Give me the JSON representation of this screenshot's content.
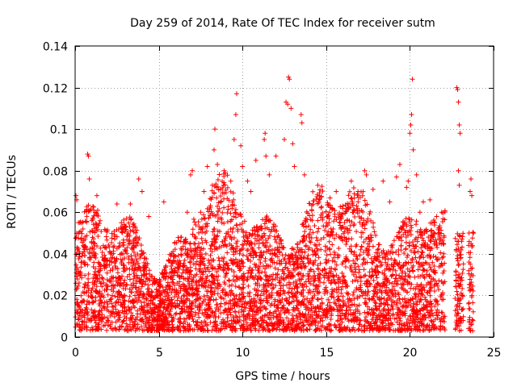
{
  "chart_data": {
    "type": "scatter",
    "title": "Day 259 of 2014, Rate Of TEC Index for receiver sutm",
    "xlabel": "GPS time / hours",
    "ylabel": "ROTI / TECUs",
    "xlim": [
      0,
      25
    ],
    "ylim": [
      0,
      0.14
    ],
    "x_ticks": [
      0,
      5,
      10,
      15,
      20,
      25
    ],
    "x_tick_labels": [
      "0",
      "5",
      "10",
      "15",
      "20",
      "25"
    ],
    "y_ticks": [
      0,
      0.02,
      0.04,
      0.06,
      0.08,
      0.1,
      0.12,
      0.14
    ],
    "y_tick_labels": [
      "0",
      "0.02",
      "0.04",
      "0.06",
      "0.08",
      "0.1",
      "0.12",
      "0.14"
    ],
    "grid": true,
    "marker": "+",
    "color": "#ff0000",
    "data_gaps_hours": [
      [
        22.1,
        22.7
      ],
      [
        23.2,
        23.5
      ]
    ],
    "series": [
      {
        "name": "ROTI",
        "points": [
          [
            0.05,
            0.068
          ],
          [
            0.1,
            0.066
          ],
          [
            0.2,
            0.055
          ],
          [
            0.75,
            0.088
          ],
          [
            0.8,
            0.087
          ],
          [
            0.85,
            0.076
          ],
          [
            1.3,
            0.068
          ],
          [
            1.35,
            0.061
          ],
          [
            2.5,
            0.064
          ],
          [
            3.3,
            0.064
          ],
          [
            3.8,
            0.076
          ],
          [
            4.0,
            0.07
          ],
          [
            4.4,
            0.058
          ],
          [
            5.3,
            0.065
          ],
          [
            6.7,
            0.06
          ],
          [
            6.9,
            0.078
          ],
          [
            7.0,
            0.08
          ],
          [
            7.5,
            0.06
          ],
          [
            7.7,
            0.07
          ],
          [
            7.9,
            0.082
          ],
          [
            8.2,
            0.073
          ],
          [
            8.3,
            0.09
          ],
          [
            8.35,
            0.1
          ],
          [
            8.5,
            0.083
          ],
          [
            8.9,
            0.08
          ],
          [
            9.3,
            0.075
          ],
          [
            9.5,
            0.095
          ],
          [
            9.6,
            0.107
          ],
          [
            9.65,
            0.117
          ],
          [
            9.9,
            0.092
          ],
          [
            10.0,
            0.082
          ],
          [
            10.3,
            0.075
          ],
          [
            10.5,
            0.07
          ],
          [
            10.8,
            0.085
          ],
          [
            11.3,
            0.095
          ],
          [
            11.35,
            0.098
          ],
          [
            11.4,
            0.087
          ],
          [
            11.6,
            0.078
          ],
          [
            12.0,
            0.087
          ],
          [
            12.5,
            0.095
          ],
          [
            12.6,
            0.113
          ],
          [
            12.7,
            0.112
          ],
          [
            12.75,
            0.125
          ],
          [
            12.8,
            0.124
          ],
          [
            12.9,
            0.11
          ],
          [
            13.0,
            0.093
          ],
          [
            13.1,
            0.082
          ],
          [
            13.5,
            0.107
          ],
          [
            13.55,
            0.103
          ],
          [
            13.7,
            0.078
          ],
          [
            14.5,
            0.073
          ],
          [
            14.6,
            0.068
          ],
          [
            15.2,
            0.06
          ],
          [
            15.6,
            0.07
          ],
          [
            16.0,
            0.063
          ],
          [
            16.5,
            0.075
          ],
          [
            16.9,
            0.07
          ],
          [
            17.3,
            0.08
          ],
          [
            17.4,
            0.078
          ],
          [
            17.8,
            0.071
          ],
          [
            18.4,
            0.075
          ],
          [
            18.8,
            0.065
          ],
          [
            19.2,
            0.077
          ],
          [
            19.4,
            0.083
          ],
          [
            19.8,
            0.072
          ],
          [
            19.9,
            0.075
          ],
          [
            20.0,
            0.098
          ],
          [
            20.05,
            0.102
          ],
          [
            20.1,
            0.107
          ],
          [
            20.15,
            0.124
          ],
          [
            20.2,
            0.09
          ],
          [
            20.4,
            0.078
          ],
          [
            20.6,
            0.06
          ],
          [
            20.8,
            0.065
          ],
          [
            21.2,
            0.066
          ],
          [
            21.6,
            0.058
          ],
          [
            21.9,
            0.06
          ],
          [
            22.8,
            0.12
          ],
          [
            22.85,
            0.119
          ],
          [
            22.9,
            0.113
          ],
          [
            22.95,
            0.102
          ],
          [
            23.0,
            0.098
          ],
          [
            22.9,
            0.08
          ],
          [
            22.95,
            0.073
          ],
          [
            23.6,
            0.07
          ],
          [
            23.7,
            0.068
          ],
          [
            23.65,
            0.076
          ],
          [
            23.8,
            0.05
          ]
        ]
      }
    ]
  }
}
